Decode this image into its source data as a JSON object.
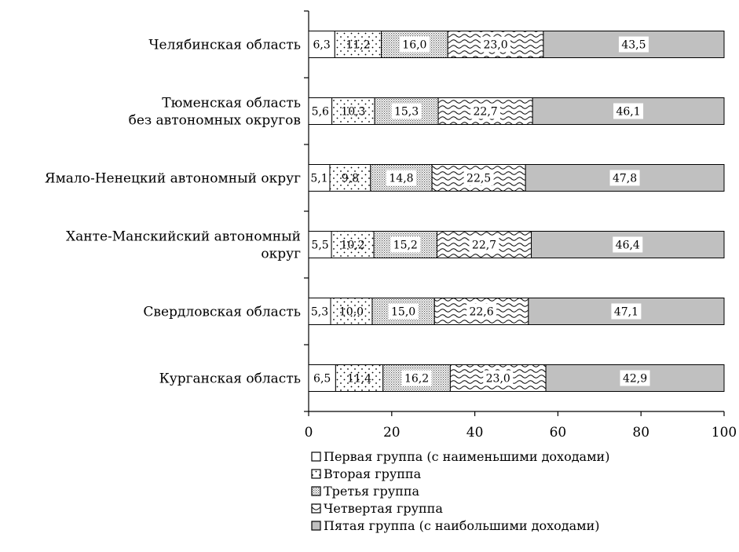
{
  "chart_data": {
    "type": "bar",
    "orientation": "horizontal",
    "stacked": true,
    "title": "",
    "xlabel": "",
    "ylabel": "",
    "xlim": [
      0,
      100
    ],
    "x_ticks": [
      0,
      20,
      40,
      60,
      80,
      100
    ],
    "grid": false,
    "legend_position": "bottom",
    "categories": [
      [
        "Челябинская область"
      ],
      [
        "Тюменская область",
        "без автономных округов"
      ],
      [
        "Ямало-Ненецкий автономный округ"
      ],
      [
        "Ханте-Манскийский автономный",
        "округ"
      ],
      [
        "Свердловская область"
      ],
      [
        "Курганская область"
      ]
    ],
    "series": [
      {
        "name": "Первая группа (с наименьшими доходами)",
        "pattern": "blank",
        "color": "#ffffff",
        "values": [
          6.3,
          5.6,
          5.1,
          5.5,
          5.3,
          6.5
        ],
        "labels": [
          "6,3",
          "5,6",
          "5,1",
          "5,5",
          "5,3",
          "6,5"
        ]
      },
      {
        "name": "Вторая группа",
        "pattern": "dots",
        "color": "#ffffff",
        "values": [
          11.2,
          10.3,
          9.8,
          10.2,
          10.0,
          11.4
        ],
        "labels": [
          "11,2",
          "10,3",
          "9,8",
          "10,2",
          "10,0",
          "11,4"
        ]
      },
      {
        "name": "Третья группа",
        "pattern": "fine-dots",
        "color": "#ffffff",
        "values": [
          16.0,
          15.3,
          14.8,
          15.2,
          15.0,
          16.2
        ],
        "labels": [
          "16,0",
          "15,3",
          "14,8",
          "15,2",
          "15,0",
          "16,2"
        ]
      },
      {
        "name": "Четвертая группа",
        "pattern": "waves",
        "color": "#ffffff",
        "values": [
          23.0,
          22.7,
          22.5,
          22.7,
          22.6,
          23.0
        ],
        "labels": [
          "23,0",
          "22,7",
          "22,5",
          "22,7",
          "22,6",
          "23,0"
        ]
      },
      {
        "name": "Пятая группа (с наибольшими доходами)",
        "pattern": "solid",
        "color": "#c0c0c0",
        "values": [
          43.5,
          46.1,
          47.8,
          46.4,
          47.1,
          42.9
        ],
        "labels": [
          "43,5",
          "46,1",
          "47,8",
          "46,4",
          "47,1",
          "42,9"
        ]
      }
    ]
  }
}
